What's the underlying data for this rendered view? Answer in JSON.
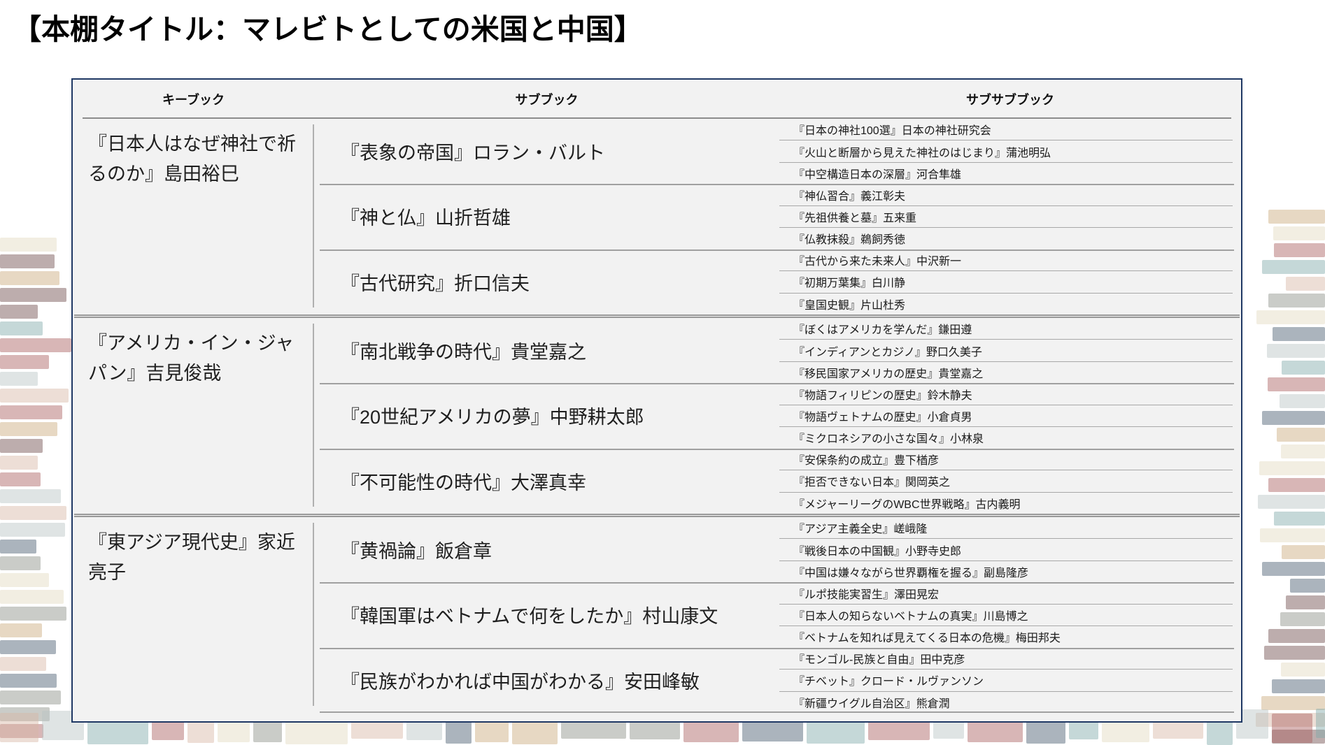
{
  "page": {
    "title": "【本棚タイトル：マレビトとしての米国と中国】"
  },
  "table": {
    "headers": {
      "key": "キーブック",
      "sub": "サブブック",
      "subsub": "サブサブブック"
    },
    "groups": [
      {
        "key_book": "『日本人はなぜ神社で祈るのか』島田裕巳",
        "subs": [
          {
            "sub_book": "『表象の帝国』ロラン・バルト",
            "items": [
              "『日本の神社100選』日本の神社研究会",
              "『火山と断層から見えた神社のはじまり』蒲池明弘",
              "『中空構造日本の深層』河合隼雄"
            ]
          },
          {
            "sub_book": "『神と仏』山折哲雄",
            "items": [
              "『神仏習合』義江彰夫",
              "『先祖供養と墓』五来重",
              "『仏教抹殺』鵜飼秀徳"
            ]
          },
          {
            "sub_book": "『古代研究』折口信夫",
            "items": [
              "『古代から来た未来人』中沢新一",
              "『初期万葉集』白川静",
              "『皇国史観』片山杜秀"
            ]
          }
        ]
      },
      {
        "key_book": "『アメリカ・イン・ジャパン』吉見俊哉",
        "subs": [
          {
            "sub_book": "『南北戦争の時代』貴堂嘉之",
            "items": [
              "『ぼくはアメリカを学んだ』鎌田遵",
              "『インディアンとカジノ』野口久美子",
              "『移民国家アメリカの歴史』貴堂嘉之"
            ]
          },
          {
            "sub_book": "『20世紀アメリカの夢』中野耕太郎",
            "items": [
              "『物語フィリピンの歴史』鈴木静夫",
              "『物語ヴェトナムの歴史』小倉貞男",
              "『ミクロネシアの小さな国々』小林泉"
            ]
          },
          {
            "sub_book": "『不可能性の時代』大澤真幸",
            "items": [
              "『安保条約の成立』豊下楢彦",
              "『拒否できない日本』関岡英之",
              "『メジャーリーグのWBC世界戦略』古内義明"
            ]
          }
        ]
      },
      {
        "key_book": "『東アジア現代史』家近亮子",
        "subs": [
          {
            "sub_book": "『黄禍論』飯倉章",
            "items": [
              "『アジア主義全史』嵯峨隆",
              "『戦後日本の中国観』小野寺史郎",
              "『中国は嫌々ながら世界覇権を握る』副島隆彦"
            ]
          },
          {
            "sub_book": "『韓国軍はベトナムで何をしたか』村山康文",
            "items": [
              "『ルポ技能実習生』澤田晃宏",
              "『日本人の知らないベトナムの真実』川島博之",
              "『ベトナムを知れば見えてくる日本の危機』梅田邦夫"
            ]
          },
          {
            "sub_book": "『民族がわかれば中国がわかる』安田峰敏",
            "items": [
              "『モンゴル-民族と自由』田中克彦",
              "『チベット』クロード・ルヴァンソン",
              "『新疆ウイグル自治区』熊倉潤"
            ]
          }
        ]
      }
    ],
    "colors": {
      "panel_background": "#f2f2f2",
      "panel_border": "#1f3864",
      "grid_line": "#a0a0a0",
      "text": "#1a1a1a"
    }
  },
  "decor": {
    "palette": [
      "#a85d5d",
      "#7ea8a8",
      "#e3d9be",
      "#44586c",
      "#c9a97a",
      "#8a8f84",
      "#b8c4c4",
      "#d8b5a5",
      "#6d4a4a"
    ]
  }
}
